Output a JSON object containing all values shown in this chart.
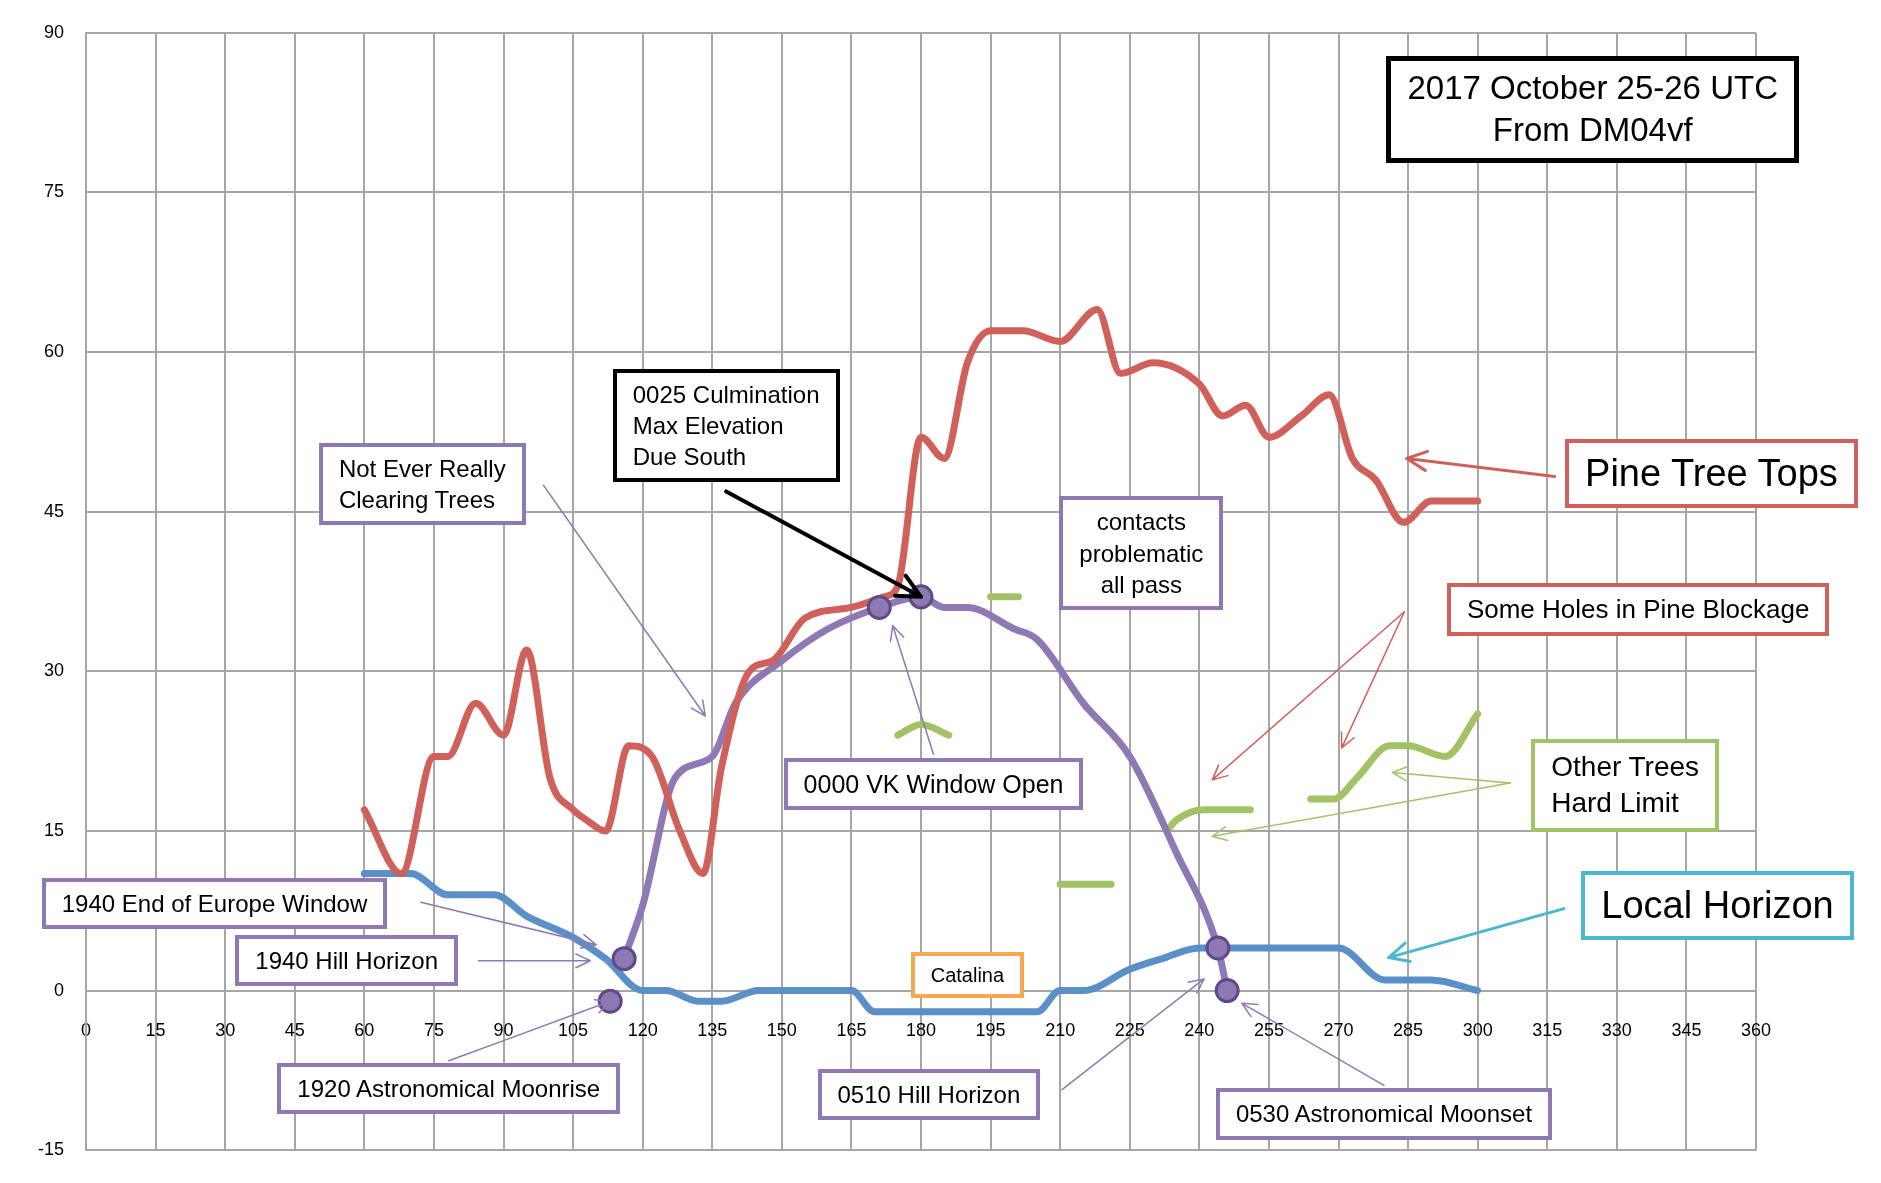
{
  "chart_data": {
    "type": "line",
    "title": "2017 October 25-26 UTC",
    "subtitle": "From DM04vf",
    "xlim": [
      0,
      360
    ],
    "xticks": [
      0,
      15,
      30,
      45,
      60,
      75,
      90,
      105,
      120,
      135,
      150,
      165,
      180,
      195,
      210,
      225,
      240,
      255,
      270,
      285,
      300,
      315,
      330,
      345,
      360
    ],
    "ylim": [
      -15,
      90
    ],
    "yticks": [
      -15,
      0,
      15,
      30,
      45,
      60,
      75,
      90
    ],
    "grid": true,
    "legend": false,
    "marker": "none",
    "series": [
      {
        "color": "#d0605a",
        "x": [
          60,
          68,
          75,
          78,
          84,
          90,
          95,
          100,
          105,
          108,
          112,
          117,
          122,
          128,
          133,
          137,
          143,
          148,
          155,
          165,
          172,
          175,
          180,
          185,
          190,
          195,
          202,
          210,
          218,
          223,
          230,
          240,
          245,
          250,
          255,
          262,
          268,
          273,
          278,
          284,
          290,
          300
        ],
        "values": [
          17,
          11,
          22,
          22,
          27,
          24,
          32,
          20,
          17,
          16,
          15,
          23,
          22,
          15,
          11,
          21,
          30,
          31,
          35,
          36,
          37,
          38,
          52,
          50,
          59,
          62,
          62,
          61,
          64,
          58,
          59,
          57,
          54,
          55,
          52,
          54,
          56,
          50,
          48,
          44,
          46,
          46
        ]
      },
      {
        "color": "#5a8fc8",
        "x": [
          60,
          70,
          78,
          88,
          95,
          105,
          112,
          120,
          125,
          132,
          137,
          145,
          160,
          165,
          170,
          180,
          205,
          210,
          215,
          225,
          232,
          240,
          270,
          280,
          290,
          300
        ],
        "values": [
          11,
          11,
          9,
          9,
          7,
          5,
          3,
          0,
          0,
          -1,
          -1,
          0,
          0,
          0,
          -2,
          -2,
          -2,
          0,
          0,
          2,
          3,
          4,
          4,
          1,
          1,
          0
        ]
      },
      {
        "color": "#8e79b5",
        "x": [
          116,
          120,
          127,
          135,
          140,
          150,
          160,
          171,
          180,
          185,
          190,
          200,
          205,
          215,
          225,
          235,
          244,
          246
        ],
        "values": [
          3,
          8,
          20,
          22,
          27,
          31,
          34,
          36,
          37,
          36,
          36,
          34,
          33,
          27,
          22,
          13,
          4,
          0
        ]
      },
      {
        "type": "scatter",
        "marker": "circle",
        "color": "#8e79b5",
        "x": [
          113,
          116,
          171,
          180,
          244,
          246
        ],
        "values": [
          -1,
          3,
          36,
          37,
          4,
          0
        ]
      },
      {
        "color": "#a2c365",
        "x": [
          175,
          180,
          186,
          188,
          195,
          201,
          205,
          210,
          221,
          227,
          233,
          235,
          241,
          251,
          258,
          264,
          269,
          274,
          281,
          285,
          293,
          300
        ],
        "values": [
          24,
          25,
          24,
          null,
          37,
          37,
          null,
          10,
          10,
          null,
          15,
          16,
          17,
          17,
          null,
          18,
          18,
          20,
          23,
          23,
          22,
          26
        ]
      }
    ],
    "annotations": [
      "Pine Tree Tops",
      "Some Holes in Pine Blockage",
      "Other Trees\nHard Limit",
      "Local Horizon",
      "contacts\nproblematic\nall pass",
      "0000 VK Window Open",
      {
        "text": "0025 Culmination\nMax Elevation\nDue South",
        "x": 180,
        "y": 37
      },
      "Not Ever Really\nClearing Trees",
      "1940 End of Europe Window",
      "1940 Hill Horizon",
      {
        "text": "1920 Astronomical Moonrise",
        "x": 113,
        "y": -1
      },
      "0510 Hill Horizon",
      "0530 Astronomical Moonset",
      "Catalina"
    ]
  }
}
